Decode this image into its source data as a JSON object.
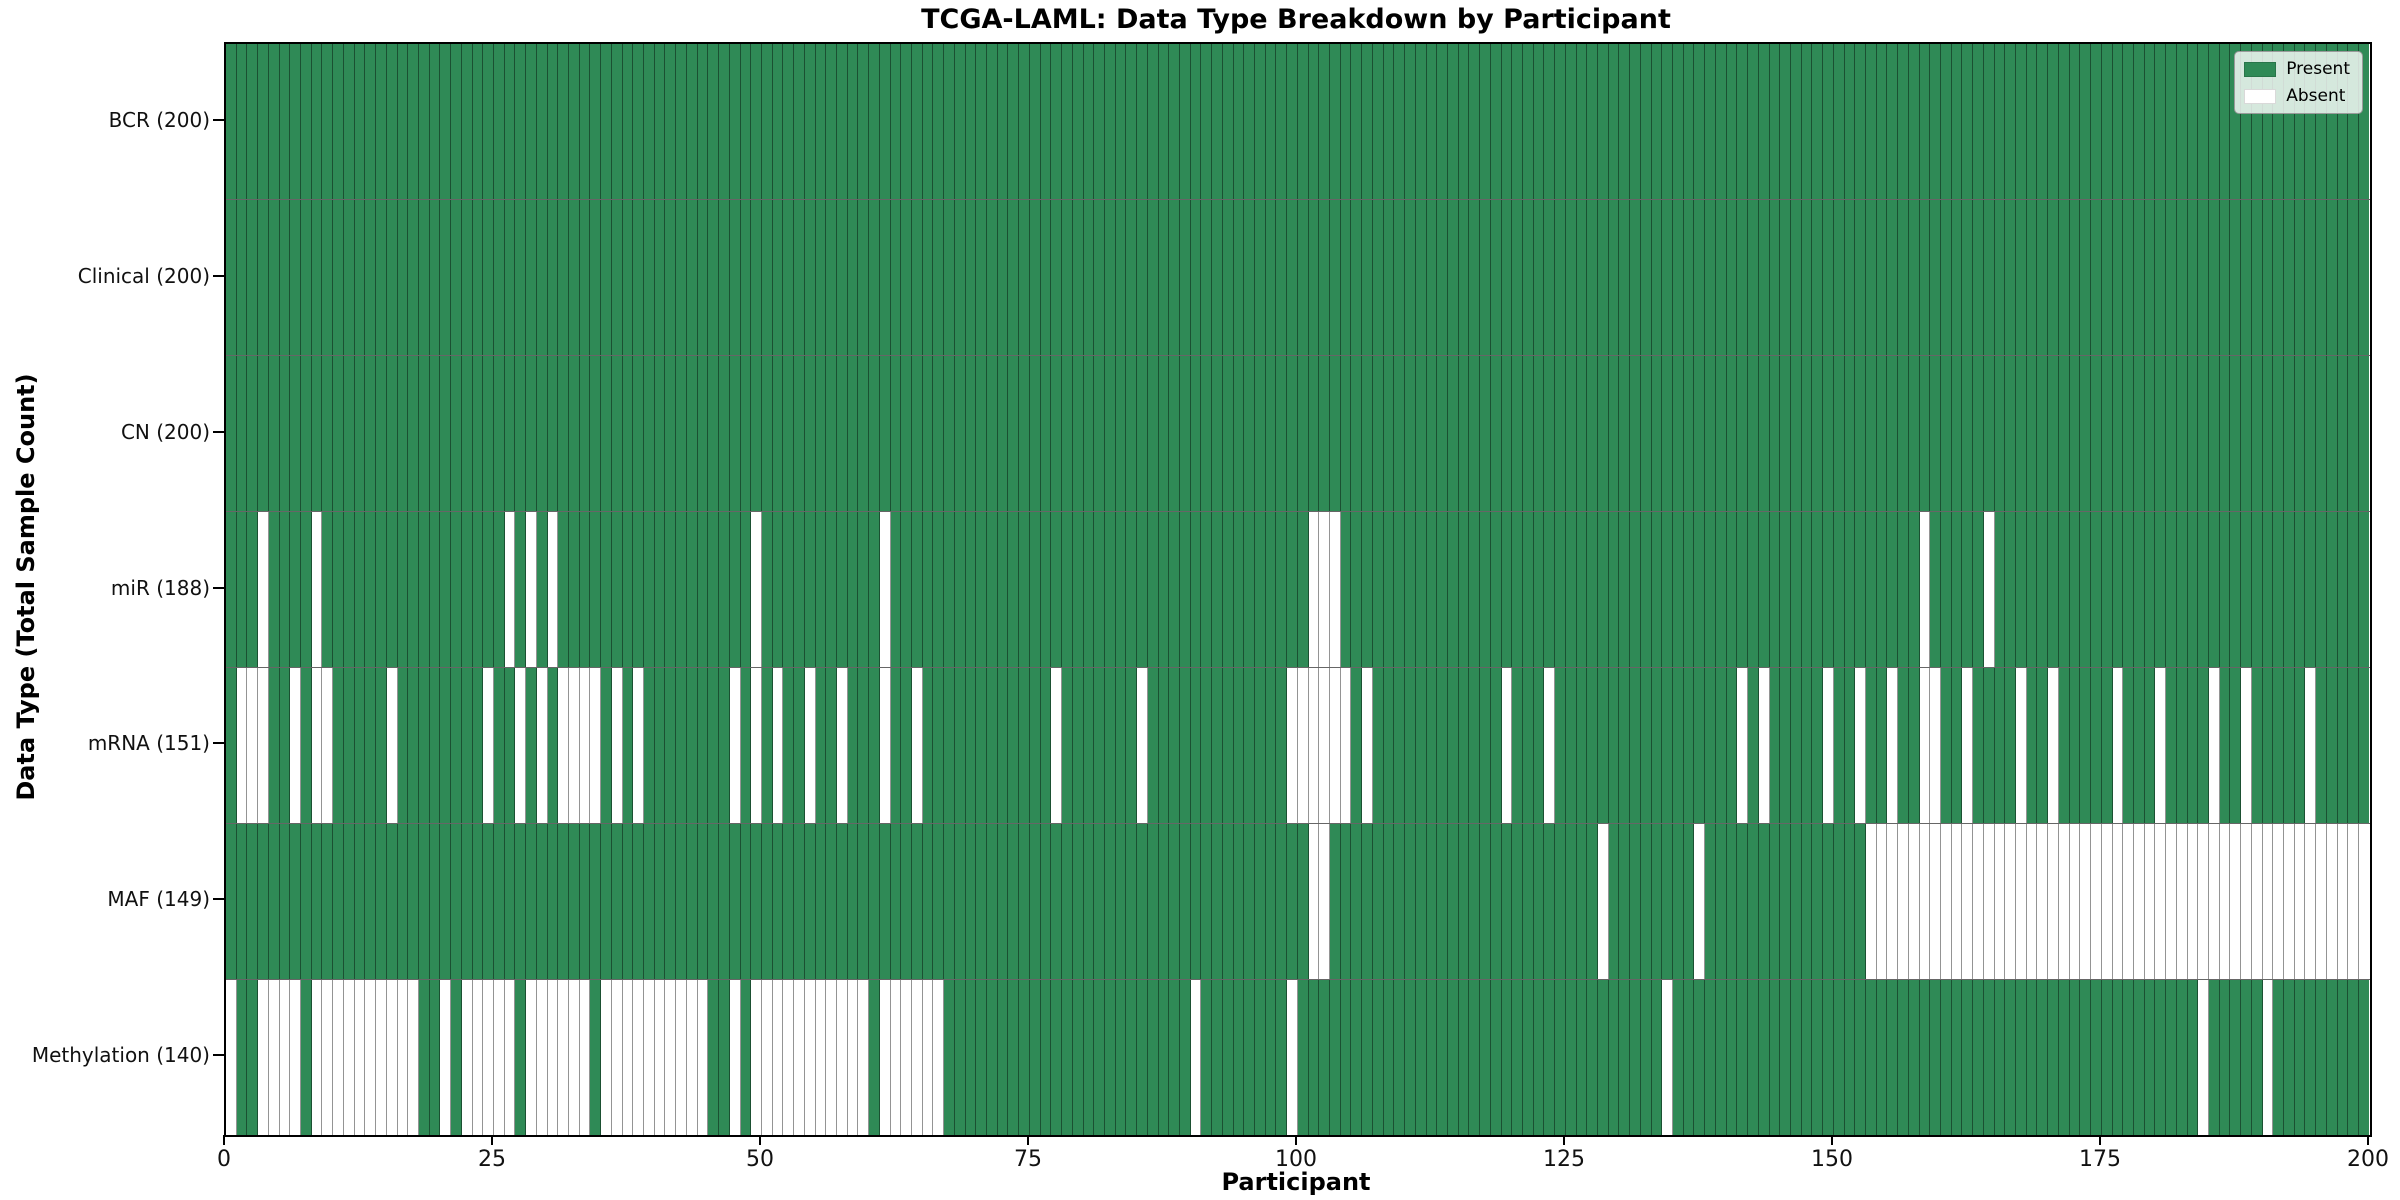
{
  "chart_data": {
    "type": "heatmap",
    "title": "TCGA-LAML: Data Type Breakdown by Participant",
    "xlabel": "Participant",
    "ylabel": "Data Type (Total Sample Count)",
    "x_range": [
      0,
      200
    ],
    "n_participants": 200,
    "x_ticks": [
      0,
      25,
      50,
      75,
      100,
      125,
      150,
      175,
      200
    ],
    "grid": true,
    "legend_position": "upper right",
    "legend": [
      {
        "label": "Present",
        "color": "#2f8a56"
      },
      {
        "label": "Absent",
        "color": "#ffffff"
      }
    ],
    "colors": {
      "present": "#2f8a56",
      "absent": "#ffffff"
    },
    "rows": [
      {
        "label": "BCR (200)",
        "name": "BCR",
        "present_count": 200,
        "absent": []
      },
      {
        "label": "Clinical (200)",
        "name": "Clinical",
        "present_count": 200,
        "absent": []
      },
      {
        "label": "CN (200)",
        "name": "CN",
        "present_count": 200,
        "absent": []
      },
      {
        "label": "miR (188)",
        "name": "miR",
        "present_count": 188,
        "absent": [
          3,
          8,
          26,
          28,
          30,
          49,
          61,
          101,
          102,
          103,
          158,
          164
        ]
      },
      {
        "label": "mRNA (151)",
        "name": "mRNA",
        "present_count": 151,
        "absent": [
          1,
          2,
          3,
          6,
          8,
          9,
          15,
          24,
          27,
          29,
          31,
          32,
          33,
          34,
          36,
          38,
          47,
          49,
          51,
          54,
          57,
          61,
          64,
          77,
          85,
          99,
          100,
          101,
          102,
          103,
          104,
          106,
          119,
          123,
          141,
          143,
          149,
          152,
          155,
          158,
          159,
          162,
          167,
          170,
          176,
          180,
          185,
          188,
          194
        ]
      },
      {
        "label": "MAF (149)",
        "name": "MAF",
        "present_count": 149,
        "absent": [
          101,
          102,
          128,
          137,
          153,
          154,
          155,
          156,
          157,
          158,
          159,
          160,
          161,
          162,
          163,
          164,
          165,
          166,
          167,
          168,
          169,
          170,
          171,
          172,
          173,
          174,
          175,
          176,
          177,
          178,
          179,
          180,
          181,
          182,
          183,
          184,
          185,
          186,
          187,
          188,
          189,
          190,
          191,
          192,
          193,
          194,
          195,
          196,
          197,
          198,
          199
        ]
      },
      {
        "label": "Methylation (140)",
        "name": "Methylation",
        "present_count": 140,
        "absent": [
          0,
          3,
          4,
          5,
          6,
          8,
          9,
          10,
          11,
          12,
          13,
          14,
          15,
          16,
          17,
          20,
          22,
          23,
          24,
          25,
          26,
          28,
          29,
          30,
          31,
          32,
          33,
          35,
          36,
          37,
          38,
          39,
          40,
          41,
          42,
          43,
          44,
          47,
          49,
          50,
          51,
          52,
          53,
          54,
          55,
          56,
          57,
          58,
          59,
          61,
          62,
          63,
          64,
          65,
          66,
          90,
          99,
          134,
          184,
          190
        ]
      }
    ]
  }
}
